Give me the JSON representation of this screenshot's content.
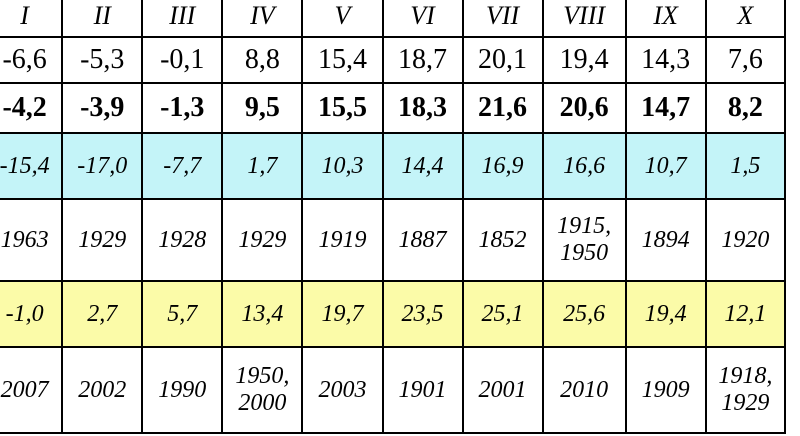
{
  "months": [
    "I",
    "II",
    "III",
    "IV",
    "V",
    "VI",
    "VII",
    "VIII",
    "IX",
    "X"
  ],
  "rows": {
    "mean_long_term": [
      "-6,6",
      "-5,3",
      "-0,1",
      "8,8",
      "15,4",
      "18,7",
      "20,1",
      "19,4",
      "14,3",
      "7,6"
    ],
    "mean_recent": [
      "-4,2",
      "-3,9",
      "-1,3",
      "9,5",
      "15,5",
      "18,3",
      "21,6",
      "20,6",
      "14,7",
      "8,2"
    ],
    "absolute_min": [
      "-15,4",
      "-17,0",
      "-7,7",
      "1,7",
      "10,3",
      "14,4",
      "16,9",
      "16,6",
      "10,7",
      "1,5"
    ],
    "absolute_min_year": [
      [
        "1963"
      ],
      [
        "1929"
      ],
      [
        "1928"
      ],
      [
        "1929"
      ],
      [
        "1919"
      ],
      [
        "1887"
      ],
      [
        "1852"
      ],
      [
        "1915,",
        "1950"
      ],
      [
        "1894"
      ],
      [
        "1920"
      ]
    ],
    "absolute_max": [
      "-1,0",
      "2,7",
      "5,7",
      "13,4",
      "19,7",
      "23,5",
      "25,1",
      "25,6",
      "19,4",
      "12,1"
    ],
    "absolute_max_year": [
      [
        "2007"
      ],
      [
        "2002"
      ],
      [
        "1990"
      ],
      [
        "1950,",
        "2000"
      ],
      [
        "2003"
      ],
      [
        "1901"
      ],
      [
        "2001"
      ],
      [
        "2010"
      ],
      [
        "1909"
      ],
      [
        "1918,",
        "1929"
      ]
    ]
  },
  "colors": {
    "min_row_bg": "#c4f4f8",
    "max_row_bg": "#fbfba8"
  }
}
